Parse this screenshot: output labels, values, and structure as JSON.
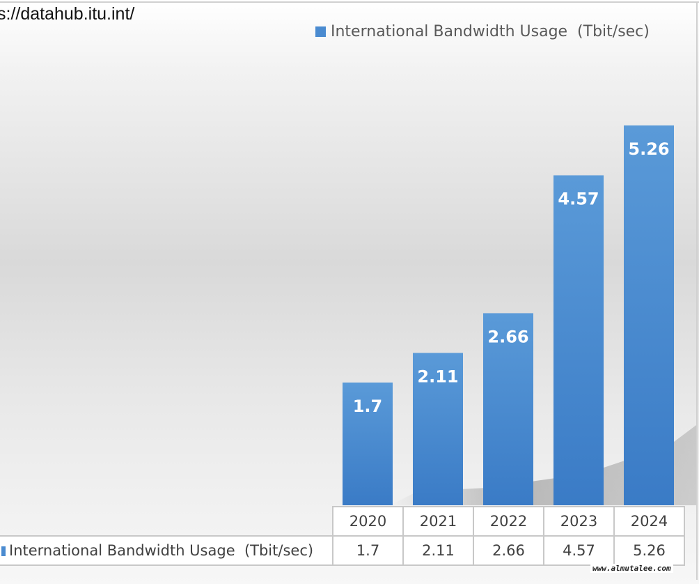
{
  "source_text": "s://datahub.itu.int/",
  "watermark": "www.almutalee.com",
  "chart_data": {
    "type": "bar",
    "categories": [
      "2020",
      "2021",
      "2022",
      "2023",
      "2024"
    ],
    "series": [
      {
        "name": "International Bandwidth Usage  (Tbit/sec)",
        "values": [
          1.7,
          2.11,
          2.66,
          4.57,
          5.26
        ],
        "color": "#4a8bd0"
      }
    ],
    "data_labels": [
      "1.7",
      "2.11",
      "2.66",
      "4.57",
      "5.26"
    ],
    "table_values": [
      "1.7",
      "2.11",
      "2.66",
      "4.57",
      "5.26"
    ],
    "ylim": [
      0,
      6.66
    ],
    "grid": false,
    "legend": "top-right",
    "data_table": true
  }
}
